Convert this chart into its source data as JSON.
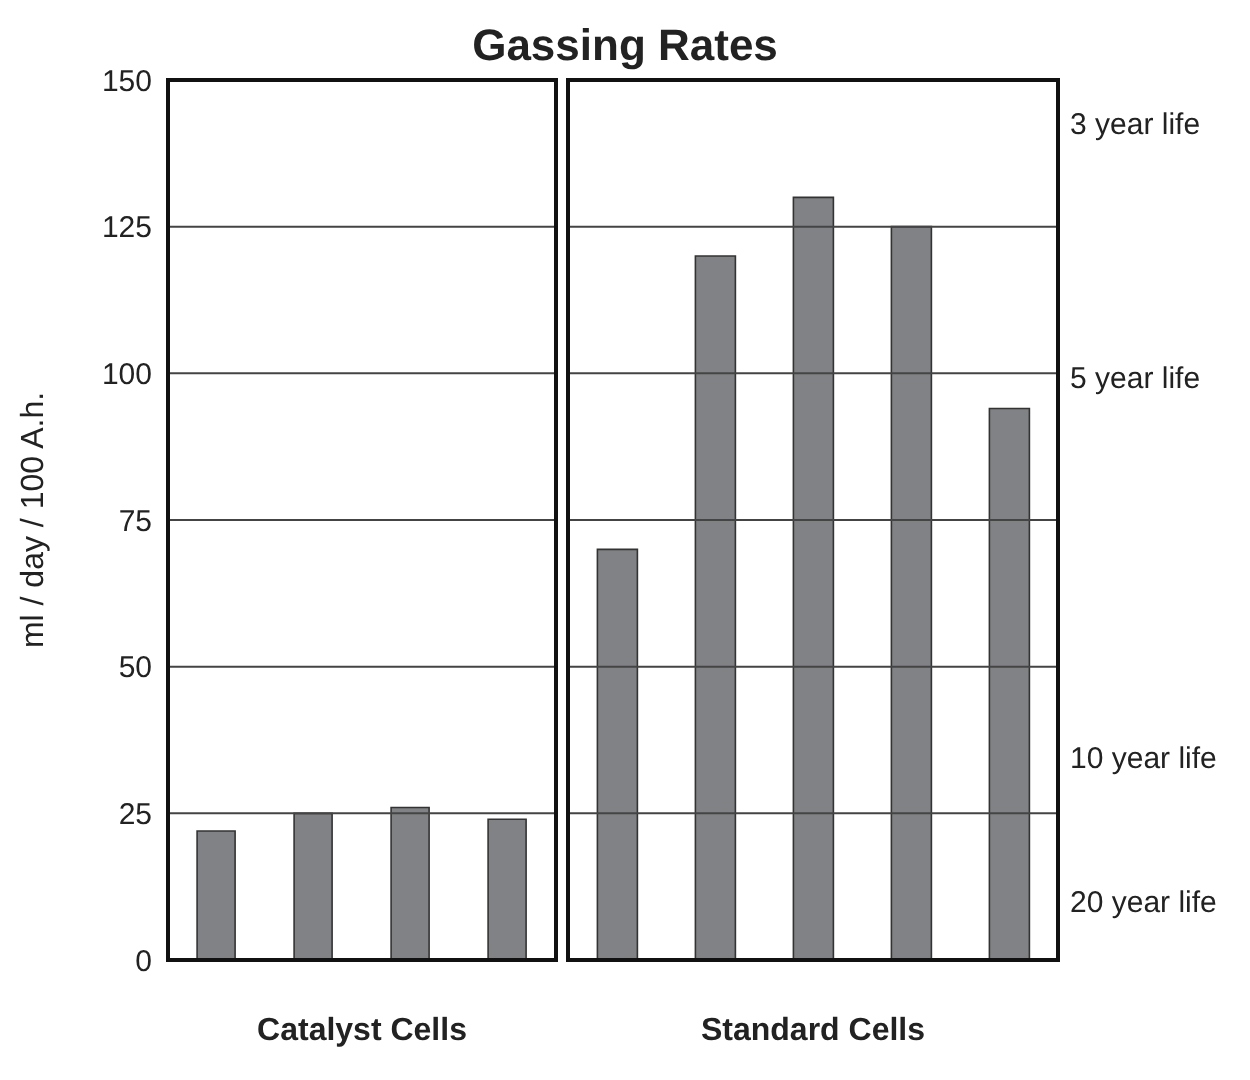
{
  "chart_data": [
    {
      "type": "bar",
      "title": "Gassing Rates",
      "xlabel": "Catalyst Cells",
      "ylabel": "ml / day / 100 A.h.",
      "categories": [
        null,
        null,
        null,
        null
      ],
      "series": [
        {
          "color": "#808285",
          "values": [
            22,
            25,
            26,
            24
          ]
        }
      ],
      "ylim": [
        0,
        150
      ],
      "yticks": [
        0,
        25,
        50,
        75,
        100,
        125,
        150
      ],
      "grid": "y",
      "legend": false
    },
    {
      "type": "bar",
      "xlabel": "Standard Cells",
      "categories": [
        null,
        null,
        null,
        null,
        null
      ],
      "series": [
        {
          "color": "#808285",
          "values": [
            70,
            120,
            130,
            125,
            94
          ]
        }
      ],
      "ylim": [
        0,
        150
      ],
      "yticks": [
        0,
        25,
        50,
        75,
        100,
        125,
        150
      ],
      "annotations": [
        "3 year life",
        "5 year life",
        "10 year life",
        "20 year life"
      ],
      "tick_labels": false,
      "grid": "y",
      "legend": false
    }
  ]
}
